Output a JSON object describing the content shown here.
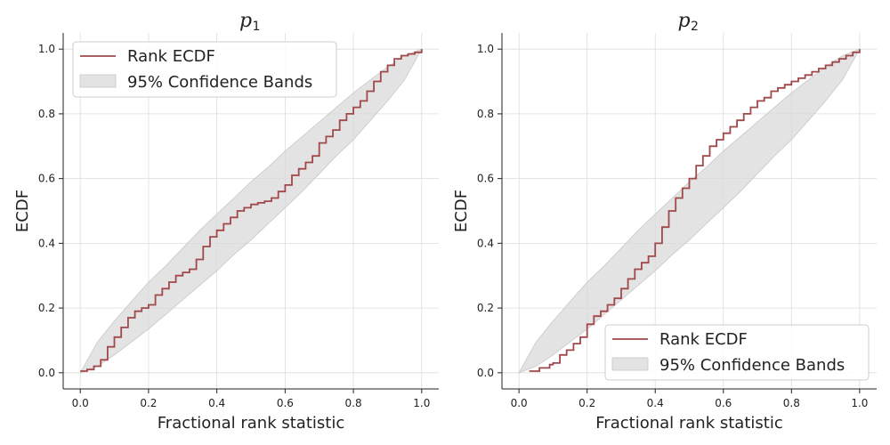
{
  "chart_data": [
    {
      "type": "line",
      "title": "p",
      "title_subscript": "1",
      "xlabel": "Fractional rank statistic",
      "ylabel": "ECDF",
      "xlim": [
        -0.05,
        1.05
      ],
      "ylim": [
        -0.05,
        1.05
      ],
      "xticks": [
        "0.0",
        "0.2",
        "0.4",
        "0.6",
        "0.8",
        "1.0"
      ],
      "yticks": [
        "0.0",
        "0.2",
        "0.4",
        "0.6",
        "0.8",
        "1.0"
      ],
      "grid": true,
      "legend_position": "top-left",
      "legend": [
        "Rank ECDF",
        "95% Confidence Bands"
      ],
      "colors": {
        "ecdf": "#a0484a",
        "band": "#d9d9d9"
      },
      "series": [
        {
          "name": "Rank ECDF",
          "x": [
            0.0,
            0.02,
            0.04,
            0.06,
            0.08,
            0.1,
            0.12,
            0.14,
            0.16,
            0.18,
            0.2,
            0.22,
            0.24,
            0.26,
            0.28,
            0.3,
            0.32,
            0.34,
            0.36,
            0.38,
            0.4,
            0.42,
            0.44,
            0.46,
            0.48,
            0.5,
            0.52,
            0.54,
            0.56,
            0.58,
            0.6,
            0.62,
            0.64,
            0.66,
            0.68,
            0.7,
            0.72,
            0.74,
            0.76,
            0.78,
            0.8,
            0.82,
            0.84,
            0.86,
            0.88,
            0.9,
            0.92,
            0.94,
            0.96,
            0.98,
            1.0
          ],
          "y": [
            0.005,
            0.01,
            0.02,
            0.04,
            0.08,
            0.11,
            0.14,
            0.17,
            0.19,
            0.2,
            0.21,
            0.24,
            0.26,
            0.28,
            0.3,
            0.31,
            0.32,
            0.35,
            0.39,
            0.42,
            0.44,
            0.46,
            0.48,
            0.5,
            0.51,
            0.52,
            0.525,
            0.53,
            0.54,
            0.56,
            0.58,
            0.61,
            0.63,
            0.65,
            0.67,
            0.71,
            0.73,
            0.75,
            0.78,
            0.8,
            0.82,
            0.84,
            0.87,
            0.9,
            0.93,
            0.95,
            0.97,
            0.98,
            0.985,
            0.99,
            1.0
          ]
        },
        {
          "name": "95% Confidence Bands",
          "x": [
            0.0,
            0.05,
            0.1,
            0.15,
            0.2,
            0.25,
            0.3,
            0.35,
            0.4,
            0.45,
            0.5,
            0.55,
            0.6,
            0.65,
            0.7,
            0.75,
            0.8,
            0.85,
            0.9,
            0.95,
            1.0
          ],
          "lower": [
            0.0,
            0.02,
            0.055,
            0.095,
            0.135,
            0.18,
            0.225,
            0.27,
            0.315,
            0.365,
            0.41,
            0.46,
            0.51,
            0.56,
            0.615,
            0.67,
            0.72,
            0.78,
            0.84,
            0.905,
            1.0
          ],
          "upper": [
            0.0,
            0.095,
            0.16,
            0.22,
            0.28,
            0.33,
            0.385,
            0.44,
            0.49,
            0.54,
            0.59,
            0.635,
            0.685,
            0.73,
            0.775,
            0.82,
            0.865,
            0.905,
            0.945,
            0.98,
            1.0
          ]
        }
      ]
    },
    {
      "type": "line",
      "title": "p",
      "title_subscript": "2",
      "xlabel": "Fractional rank statistic",
      "ylabel": "ECDF",
      "xlim": [
        -0.05,
        1.05
      ],
      "ylim": [
        -0.05,
        1.05
      ],
      "xticks": [
        "0.0",
        "0.2",
        "0.4",
        "0.6",
        "0.8",
        "1.0"
      ],
      "yticks": [
        "0.0",
        "0.2",
        "0.4",
        "0.6",
        "0.8",
        "1.0"
      ],
      "grid": true,
      "legend_position": "bottom-right",
      "legend": [
        "Rank ECDF",
        "95% Confidence Bands"
      ],
      "colors": {
        "ecdf": "#a0484a",
        "band": "#d9d9d9"
      },
      "series": [
        {
          "name": "Rank ECDF",
          "x": [
            0.03,
            0.06,
            0.09,
            0.1,
            0.12,
            0.14,
            0.16,
            0.18,
            0.2,
            0.22,
            0.24,
            0.26,
            0.28,
            0.3,
            0.32,
            0.34,
            0.36,
            0.38,
            0.4,
            0.42,
            0.44,
            0.46,
            0.48,
            0.5,
            0.52,
            0.54,
            0.56,
            0.58,
            0.6,
            0.62,
            0.64,
            0.66,
            0.68,
            0.7,
            0.72,
            0.74,
            0.76,
            0.78,
            0.8,
            0.82,
            0.84,
            0.86,
            0.88,
            0.9,
            0.92,
            0.94,
            0.96,
            0.98,
            1.0
          ],
          "y": [
            0.005,
            0.015,
            0.025,
            0.03,
            0.055,
            0.07,
            0.09,
            0.11,
            0.15,
            0.175,
            0.19,
            0.21,
            0.23,
            0.26,
            0.29,
            0.32,
            0.34,
            0.36,
            0.4,
            0.45,
            0.5,
            0.54,
            0.57,
            0.6,
            0.64,
            0.67,
            0.7,
            0.72,
            0.74,
            0.76,
            0.78,
            0.8,
            0.82,
            0.84,
            0.85,
            0.87,
            0.88,
            0.89,
            0.9,
            0.91,
            0.92,
            0.93,
            0.94,
            0.95,
            0.96,
            0.97,
            0.98,
            0.99,
            1.0
          ]
        },
        {
          "name": "95% Confidence Bands",
          "x": [
            0.0,
            0.05,
            0.1,
            0.15,
            0.2,
            0.25,
            0.3,
            0.35,
            0.4,
            0.45,
            0.5,
            0.55,
            0.6,
            0.65,
            0.7,
            0.75,
            0.8,
            0.85,
            0.9,
            0.95,
            1.0
          ],
          "lower": [
            0.0,
            0.02,
            0.055,
            0.095,
            0.135,
            0.18,
            0.225,
            0.27,
            0.315,
            0.365,
            0.41,
            0.46,
            0.51,
            0.56,
            0.615,
            0.67,
            0.72,
            0.78,
            0.84,
            0.905,
            1.0
          ],
          "upper": [
            0.0,
            0.095,
            0.16,
            0.22,
            0.28,
            0.33,
            0.385,
            0.44,
            0.49,
            0.54,
            0.59,
            0.635,
            0.685,
            0.73,
            0.775,
            0.82,
            0.865,
            0.905,
            0.945,
            0.98,
            1.0
          ]
        }
      ]
    }
  ]
}
